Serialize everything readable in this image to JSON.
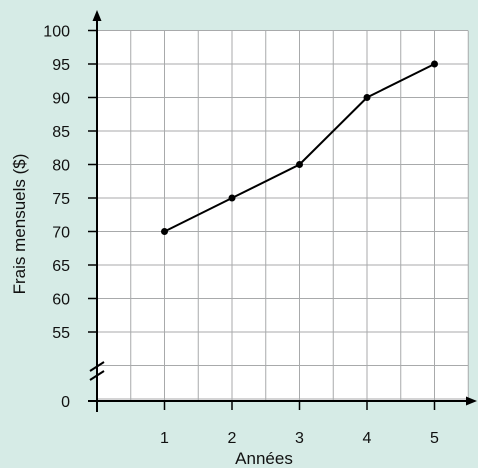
{
  "chart_data": {
    "type": "line",
    "xlabel": "Années",
    "ylabel": "Frais mensuels ($)",
    "x": [
      1,
      2,
      3,
      4,
      5
    ],
    "y": [
      70,
      75,
      80,
      90,
      95
    ],
    "x_ticks": [
      1,
      2,
      3,
      4,
      5
    ],
    "y_ticks": [
      0,
      55,
      60,
      65,
      70,
      75,
      80,
      85,
      90,
      95,
      100
    ],
    "xlim": [
      0,
      5.5
    ],
    "ylim": [
      50,
      100
    ],
    "y_axis_break": true,
    "grid": true,
    "colors": {
      "background": "#d6ebe6",
      "plot_area": "#ffffff",
      "grid": "#a8aaab",
      "line": "#000000"
    }
  }
}
